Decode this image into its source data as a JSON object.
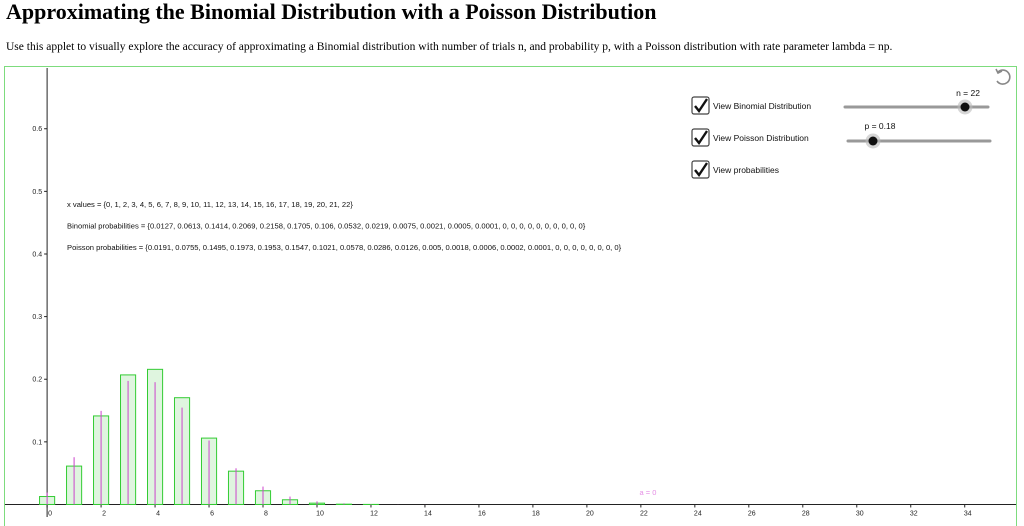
{
  "header": {
    "title": "Approximating the Binomial Distribution with a Poisson Distribution",
    "description": "Use this applet to visually explore the accuracy of approximating a Binomial distribution with number of trials n, and probability p, with a Poisson distribution with rate parameter lambda = np."
  },
  "controls": {
    "checkboxes": [
      {
        "label": "View Binomial Distribution",
        "checked": true
      },
      {
        "label": "View Poisson Distribution",
        "checked": true
      },
      {
        "label": "View probabilities",
        "checked": true
      }
    ],
    "sliders": [
      {
        "label": "n = 22"
      },
      {
        "label": "p = 0.18"
      }
    ]
  },
  "lists": [
    "x values = {0, 1, 2, 3, 4, 5, 6, 7, 8, 9, 10, 11, 12, 13, 14, 15, 16, 17, 18, 19, 20, 21, 22}",
    "Binomial probabilities = {0.0127, 0.0613, 0.1414, 0.2069, 0.2158, 0.1705, 0.106, 0.0532, 0.0219, 0.0075, 0.0021, 0.0005, 0.0001, 0, 0, 0, 0, 0, 0, 0, 0, 0, 0}",
    "Poisson probabilities = {0.0191, 0.0755, 0.1495, 0.1973, 0.1953, 0.1547, 0.1021, 0.0578, 0.0286, 0.0126, 0.005, 0.0018, 0.0006, 0.0002, 0.0001, 0, 0, 0, 0, 0, 0, 0, 0}"
  ],
  "chart_data": {
    "type": "bar",
    "x": [
      0,
      1,
      2,
      3,
      4,
      5,
      6,
      7,
      8,
      9,
      10,
      11,
      12,
      13,
      14,
      15,
      16,
      17,
      18,
      19,
      20,
      21,
      22
    ],
    "series": [
      {
        "type": "bar",
        "color": "#33cc33",
        "fill_color": "#dff5df",
        "values": [
          0.0127,
          0.0613,
          0.1414,
          0.2069,
          0.2158,
          0.1705,
          0.106,
          0.0532,
          0.0219,
          0.0075,
          0.0021,
          0.0005,
          0.0001,
          0,
          0,
          0,
          0,
          0,
          0,
          0,
          0,
          0,
          0
        ]
      },
      {
        "type": "stem",
        "color": "#cc44cc",
        "values": [
          0.0191,
          0.0755,
          0.1495,
          0.1973,
          0.1953,
          0.1547,
          0.1021,
          0.0578,
          0.0286,
          0.0126,
          0.005,
          0.0018,
          0.0006,
          0.0002,
          0.0001,
          0,
          0,
          0,
          0,
          0,
          0,
          0,
          0
        ]
      }
    ],
    "xlim": [
      -1.56,
      35.9
    ],
    "ylim": [
      -0.02,
      0.697
    ],
    "xticks": [
      0,
      2,
      4,
      6,
      8,
      10,
      12,
      14,
      16,
      18,
      20,
      22,
      24,
      26,
      28,
      30,
      32,
      34
    ],
    "yticks": [
      0.1,
      0.2,
      0.3,
      0.4,
      0.5,
      0.6
    ],
    "annotation": "a = 0"
  }
}
